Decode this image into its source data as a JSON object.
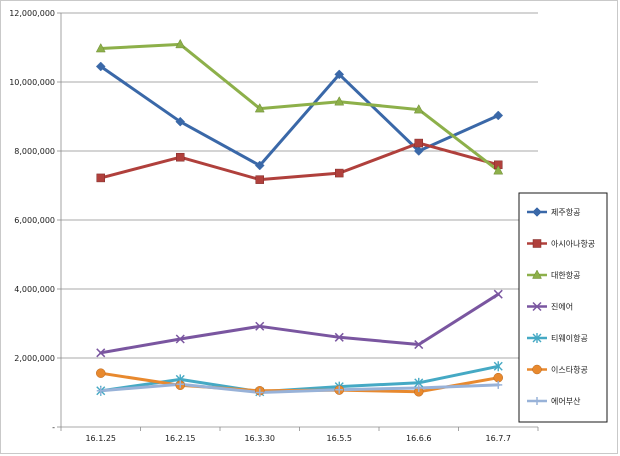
{
  "chart_data": {
    "type": "line",
    "title": "",
    "xlabel": "",
    "ylabel": "",
    "categories": [
      "16.1.25",
      "16.2.15",
      "16.3.30",
      "16.5.5",
      "16.6.6",
      "16.7.7"
    ],
    "yticks": [
      0,
      2000000,
      4000000,
      6000000,
      8000000,
      10000000,
      12000000
    ],
    "ytick_labels": [
      "-",
      "2,000,000",
      "4,000,000",
      "6,000,000",
      "8,000,000",
      "10,000,000",
      "12,000,000"
    ],
    "ylim": [
      0,
      12000000
    ],
    "grid": "horizontal",
    "legend": "right",
    "series": [
      {
        "name": "제주항공",
        "color": "#3a68a8",
        "marker": "diamond",
        "values": [
          10450000,
          8850000,
          7580000,
          10220000,
          8000000,
          9030000
        ]
      },
      {
        "name": "아시아나항공",
        "color": "#b0403c",
        "marker": "square",
        "values": [
          7220000,
          7820000,
          7170000,
          7360000,
          8230000,
          7600000
        ]
      },
      {
        "name": "대한항공",
        "color": "#8db04a",
        "marker": "triangle",
        "values": [
          10970000,
          11090000,
          9230000,
          9430000,
          9200000,
          7430000
        ]
      },
      {
        "name": "진에어",
        "color": "#7a56a0",
        "marker": "x",
        "values": [
          2150000,
          2550000,
          2920000,
          2600000,
          2390000,
          3850000
        ]
      },
      {
        "name": "티웨이항공",
        "color": "#45a9c4",
        "marker": "star",
        "values": [
          1050000,
          1380000,
          1020000,
          1170000,
          1280000,
          1760000
        ]
      },
      {
        "name": "이스타항공",
        "color": "#e8892e",
        "marker": "circle",
        "values": [
          1560000,
          1210000,
          1050000,
          1070000,
          1020000,
          1430000
        ]
      },
      {
        "name": "에어부산",
        "color": "#98b2d8",
        "marker": "plus",
        "values": [
          1050000,
          1240000,
          1000000,
          1080000,
          1130000,
          1220000
        ]
      }
    ]
  }
}
